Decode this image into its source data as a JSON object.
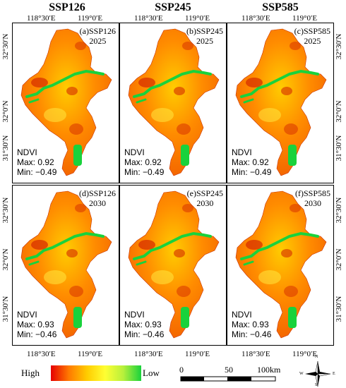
{
  "columns": [
    "SSP126",
    "SSP245",
    "SSP585"
  ],
  "top_lon_labels": [
    "118°30′E",
    "119°0′E"
  ],
  "bottom_lon_labels": [
    "118°30′E",
    "119°0′E"
  ],
  "lat_labels": [
    "32°30′N",
    "32°0′N",
    "31°30′N"
  ],
  "panels": [
    {
      "label": "(a)SSP126",
      "year": "2025",
      "title": "NDVI",
      "max": "Max: 0.92",
      "min": "Min: −0.49"
    },
    {
      "label": "(b)SSP245",
      "year": "2025",
      "title": "NDVI",
      "max": "Max: 0.92",
      "min": "Min: −0.49"
    },
    {
      "label": "(c)SSP585",
      "year": "2025",
      "title": "NDVI",
      "max": "Max: 0.92",
      "min": "Min: −0.49"
    },
    {
      "label": "(d)SSP126",
      "year": "2030",
      "title": "NDVI",
      "max": "Max: 0.93",
      "min": "Min: −0.46"
    },
    {
      "label": "(e)SSP245",
      "year": "2030",
      "title": "NDVI",
      "max": "Max: 0.93",
      "min": "Min: −0.46"
    },
    {
      "label": "(f)SSP585",
      "year": "2030",
      "title": "NDVI",
      "max": "Max: 0.93",
      "min": "Min: −0.46"
    }
  ],
  "legend": {
    "high": "High",
    "low": "Low",
    "colors": [
      "#e60000",
      "#ff7a00",
      "#ffcc00",
      "#ffff33",
      "#b8f03c",
      "#19d23c"
    ]
  },
  "scale": {
    "ticks": [
      "0",
      "50",
      "100km"
    ]
  },
  "north_arrow": {
    "n": "N",
    "s": "S",
    "e": "E",
    "w": "W",
    "icon": "compass-rose-icon"
  }
}
